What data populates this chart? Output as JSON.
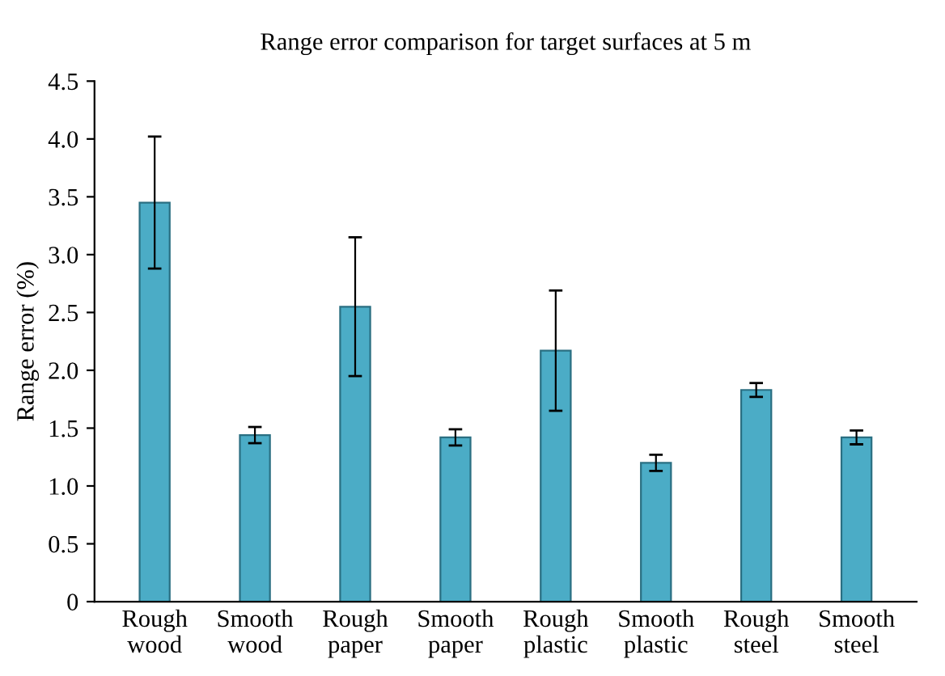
{
  "chart_data": {
    "type": "bar",
    "title": "Range error comparison for target surfaces at 5 m",
    "ylabel": "Range error (%)",
    "categories": [
      "Rough\nwood",
      "Smooth\nwood",
      "Rough\npaper",
      "Smooth\npaper",
      "Rough\nplastic",
      "Smooth\nplastic",
      "Rough\nsteel",
      "Smooth\nsteel"
    ],
    "values": [
      3.45,
      1.44,
      2.55,
      1.42,
      2.17,
      1.2,
      1.83,
      1.42
    ],
    "errors": [
      0.57,
      0.07,
      0.6,
      0.07,
      0.52,
      0.07,
      0.06,
      0.06
    ],
    "color": "#4bacc6",
    "ylim": [
      0,
      4.5
    ],
    "yticks": [
      0,
      0.5,
      {
        "value": 1,
        "label": "1.0"
      },
      1.5,
      {
        "value": 2,
        "label": "2.0"
      },
      2.5,
      {
        "value": 3,
        "label": "3.0"
      },
      3.5,
      {
        "value": 4,
        "label": "4.0"
      },
      4.5
    ],
    "grid": false,
    "legend": false
  }
}
